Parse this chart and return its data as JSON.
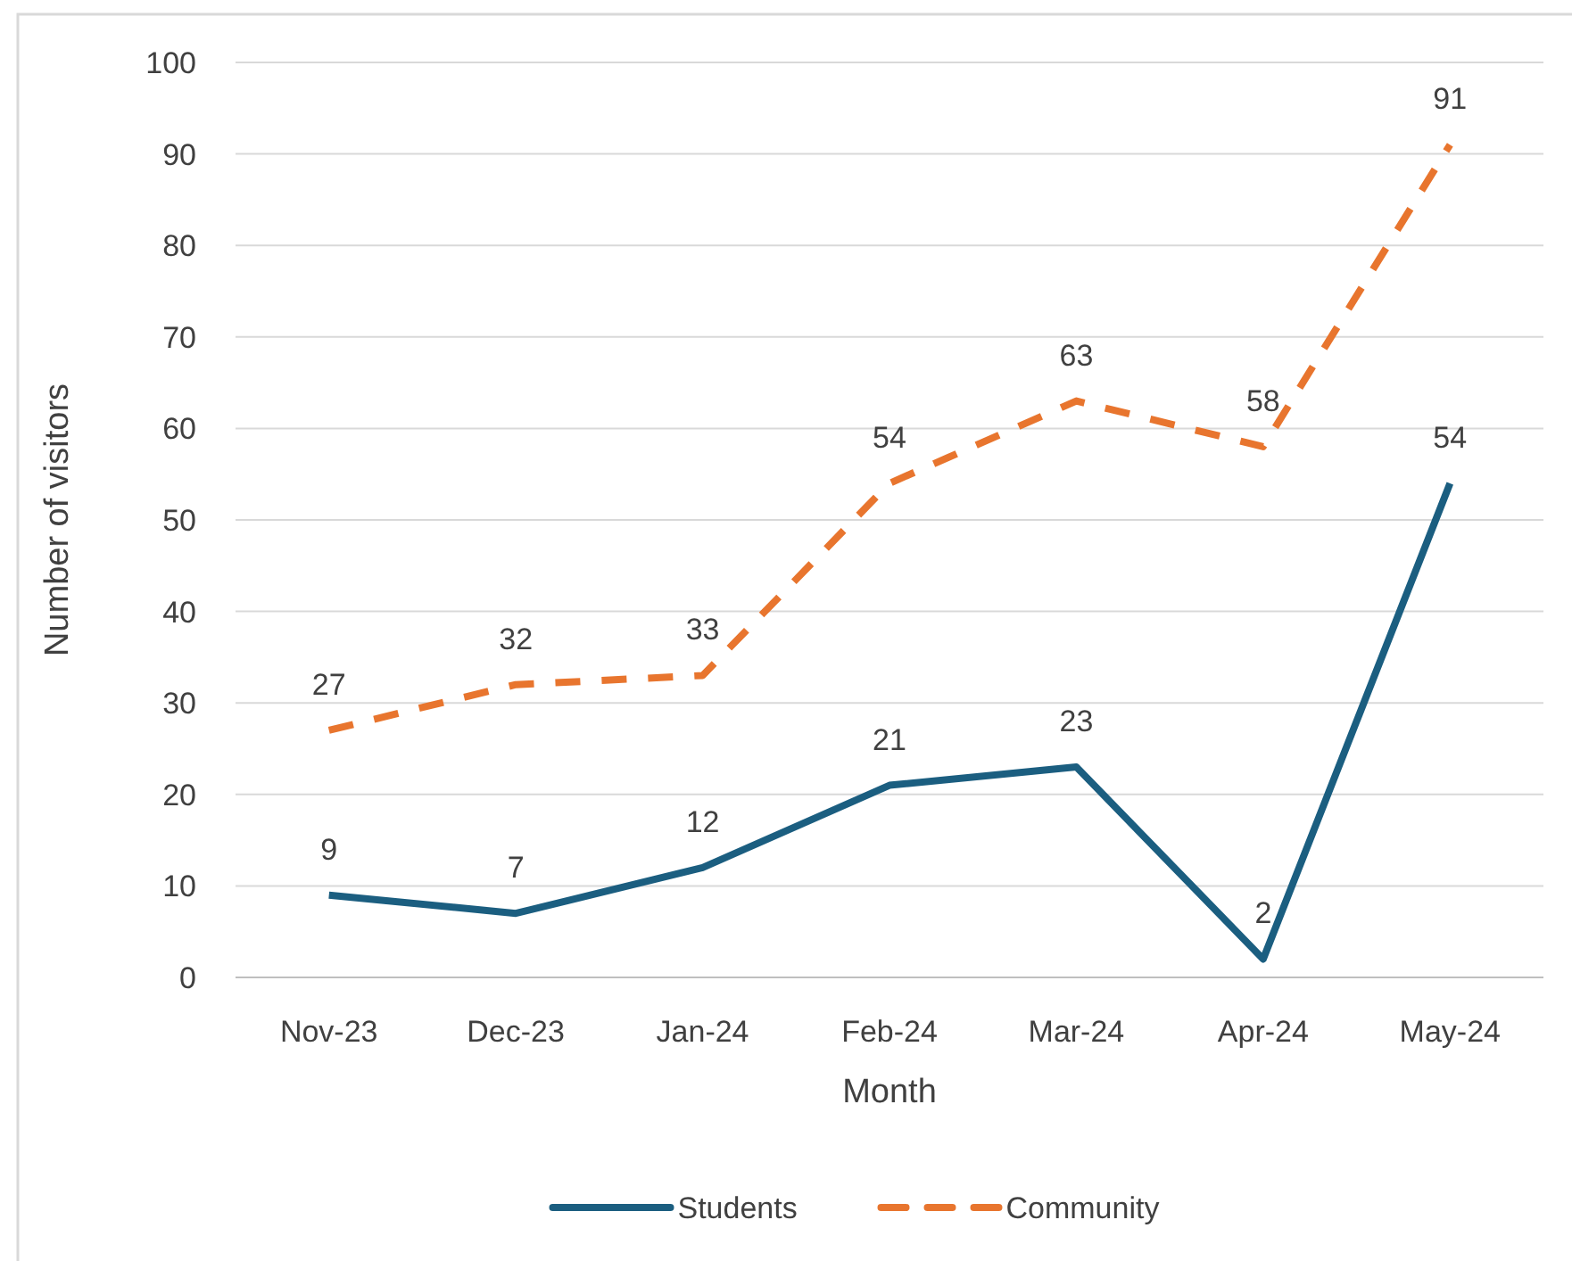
{
  "chart_data": {
    "type": "line",
    "xlabel": "Month",
    "ylabel": "Number of visitors",
    "categories": [
      "Nov-23",
      "Dec-23",
      "Jan-24",
      "Feb-24",
      "Mar-24",
      "Apr-24",
      "May-24"
    ],
    "series": [
      {
        "name": "Students",
        "color": "#1b5e80",
        "values": [
          9,
          7,
          12,
          21,
          23,
          2,
          54
        ],
        "line_style": "solid"
      },
      {
        "name": "Community",
        "color": "#e8752e",
        "values": [
          27,
          32,
          33,
          54,
          63,
          58,
          91
        ],
        "line_style": "dashed"
      }
    ],
    "ylim": [
      0,
      100
    ],
    "yticks": [
      0,
      10,
      20,
      30,
      40,
      50,
      60,
      70,
      80,
      90,
      100
    ],
    "grid": "y",
    "legend": "bottom",
    "data_labels": true,
    "marker": "none"
  }
}
